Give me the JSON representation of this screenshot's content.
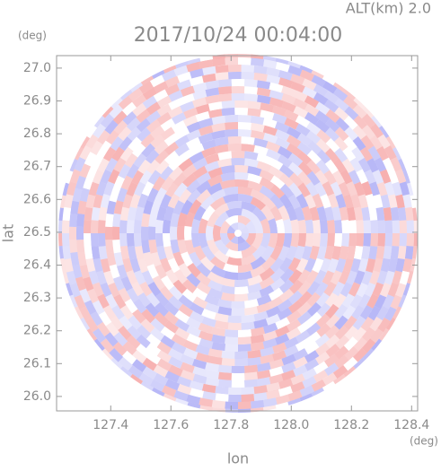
{
  "chart_data": {
    "type": "radar-ppi",
    "title": "2017/10/24 00:04:00",
    "subtitle": "ALT(km) 2.0",
    "x_label": "lon",
    "y_label": "lat",
    "x_unit": "(deg)",
    "y_unit": "(deg)",
    "xlim": [
      127.22,
      128.42
    ],
    "ylim": [
      25.956,
      27.038
    ],
    "xticks": [
      127.4,
      127.6,
      127.8,
      {
        "value": 128.0,
        "label": "128.0"
      },
      128.2,
      128.4
    ],
    "yticks": [
      {
        "value": 26.0,
        "label": "26.0"
      },
      26.1,
      26.2,
      26.3,
      26.4,
      26.5,
      26.6,
      26.7,
      26.8,
      26.9,
      {
        "value": 27.0,
        "label": "27.0"
      }
    ]
  }
}
